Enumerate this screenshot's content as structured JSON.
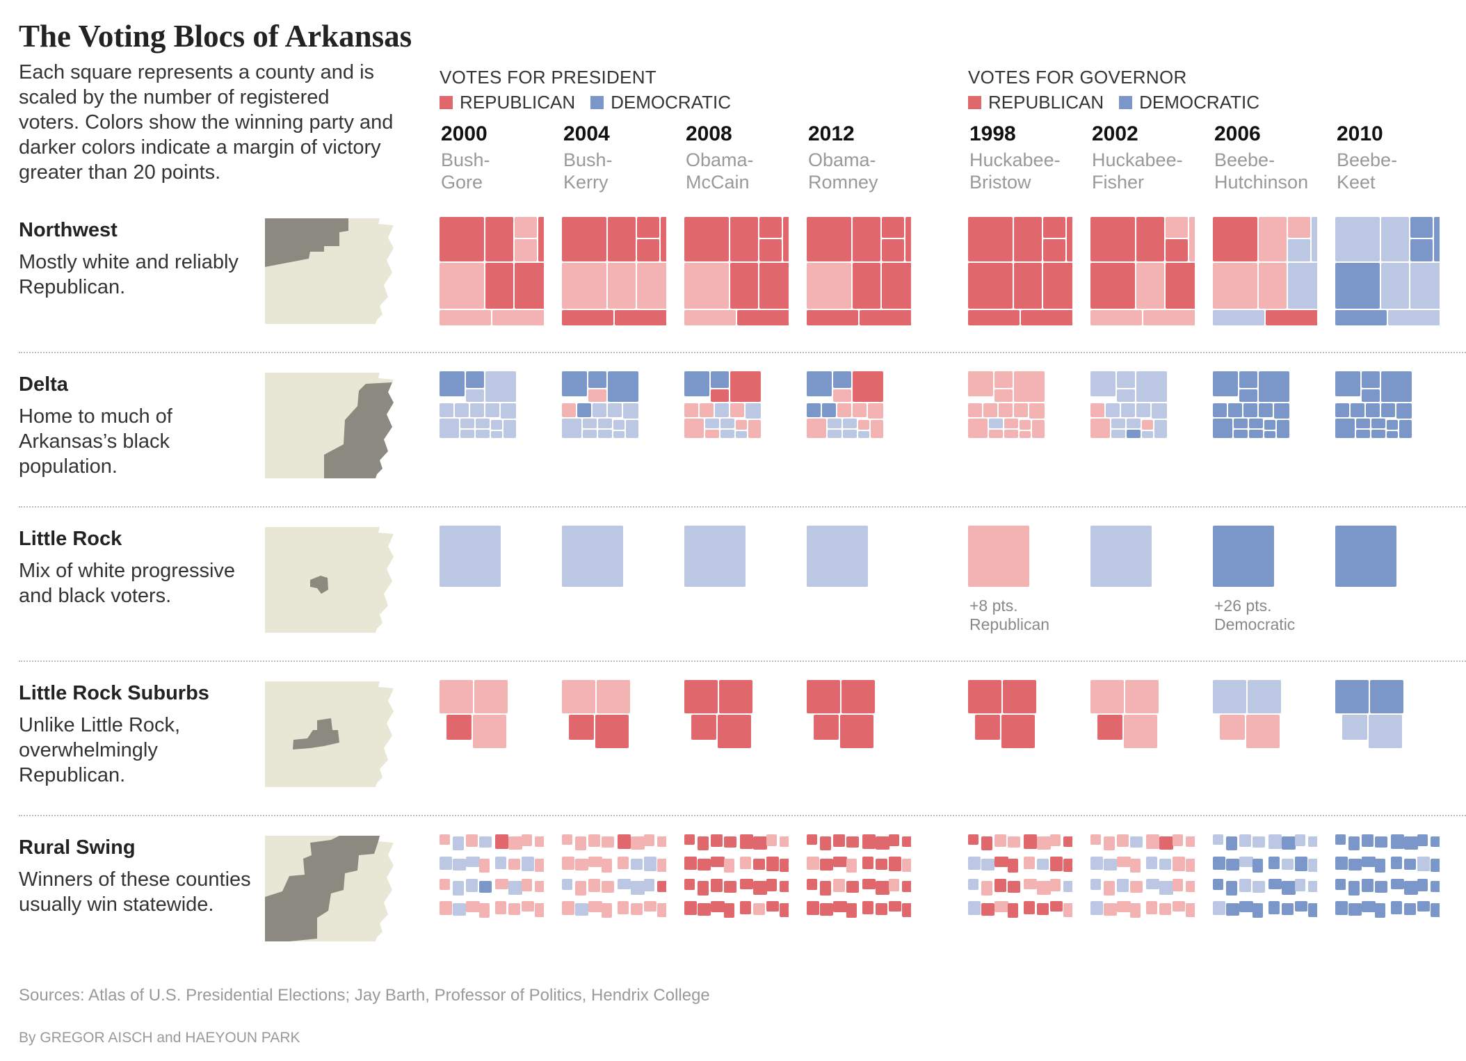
{
  "title": "The Voting Blocs of Arkansas",
  "intro": "Each square represents a county and is scaled by the number of registered voters. Colors show the winning party and darker colors indicate a margin of victory greater than 20 points.",
  "colors": {
    "rep_strong": "#e0676b",
    "rep_weak": "#f4b3b3",
    "dem_strong": "#7b97c9",
    "dem_weak": "#bcc7e3",
    "map_fill": "#e8e6d4",
    "map_region": "#8c8a80"
  },
  "president": {
    "title": "VOTES FOR PRESIDENT",
    "legend": [
      "REPUBLICAN",
      "DEMOCRATIC"
    ],
    "elections": [
      {
        "year": "2000",
        "candidates": [
          "Bush-",
          "Gore"
        ]
      },
      {
        "year": "2004",
        "candidates": [
          "Bush-",
          "Kerry"
        ]
      },
      {
        "year": "2008",
        "candidates": [
          "Obama-",
          "McCain"
        ]
      },
      {
        "year": "2012",
        "candidates": [
          "Obama-",
          "Romney"
        ]
      }
    ]
  },
  "governor": {
    "title": "VOTES FOR GOVERNOR",
    "legend": [
      "REPUBLICAN",
      "DEMOCRATIC"
    ],
    "elections": [
      {
        "year": "1998",
        "candidates": [
          "Huckabee-",
          "Bristow"
        ]
      },
      {
        "year": "2002",
        "candidates": [
          "Huckabee-",
          "Fisher"
        ]
      },
      {
        "year": "2006",
        "candidates": [
          "Beebe-",
          "Hutchinson"
        ]
      },
      {
        "year": "2010",
        "candidates": [
          "Beebe-",
          "Keet"
        ]
      }
    ]
  },
  "regions": [
    {
      "name": "Northwest",
      "description": "Mostly white and reliably Republican."
    },
    {
      "name": "Delta",
      "description": "Home to much of Arkansas’s black population."
    },
    {
      "name": "Little Rock",
      "description": "Mix of white progressive and black voters."
    },
    {
      "name": "Little Rock Suburbs",
      "description": "Unlike Little Rock, overwhelmingly Republican."
    },
    {
      "name": "Rural Swing",
      "description": "Winners of these counties usually win statewide."
    }
  ],
  "annotations": [
    {
      "line1": "+8 pts.",
      "line2": "Republican"
    },
    {
      "line1": "+26 pts.",
      "line2": "Democratic"
    }
  ],
  "source": "Sources: Atlas of U.S. Presidential Elections; Jay Barth, Professor of Politics, Hendrix College",
  "byline": "By GREGOR AISCH and HAEYOUN PARK",
  "chart_data": {
    "type": "heatmap",
    "value_legend": {
      "R": "Republican win, margin > 20 pts",
      "r": "Republican win, margin ≤ 20 pts",
      "D": "Democratic win, margin > 20 pts",
      "d": "Democratic win, margin ≤ 20 pts"
    },
    "columns": [
      "2000",
      "2004",
      "2008",
      "2012",
      "1998",
      "2002",
      "2006",
      "2010"
    ],
    "rows": [
      "Northwest",
      "Delta",
      "Little Rock",
      "Little Rock Suburbs",
      "Rural Swing"
    ],
    "cells": [
      [
        "RRrrRrRRrr",
        "RRRRRrrrRR",
        "RRRRRrRRrR",
        "RRRRRrRRRR",
        "RRRRRRRRRR",
        "RRrRrRrRrr",
        "RrrddrrddR",
        "ddDDDDddDd"
      ],
      [
        "DDddddddddddddddd",
        "DDDrrDddddddddddd",
        "DDRRrrdrdrddrrrdd",
        "DDRrDDrrrrddrrddd",
        "rrrrrrrrrrdrrrrrr",
        "ddddrddddrddrddDd",
        "DDDDDDDDDDDDDDDDD",
        "DDDDDDDDDDDDDDDDD"
      ],
      [
        "d",
        "d",
        "d",
        "d",
        "r",
        "d",
        "D",
        "D"
      ],
      [
        "rrRr",
        "rrRR",
        "RRRR",
        "RRRR",
        "RRRR",
        "rrRr",
        "ddrr",
        "DDdd"
      ],
      [
        "rdrdRrrrdddrdrdrrddDrdrrrdrrrrrr",
        "rrrrRrrrrrrrrddrdrrrdddRrdrrrrrr",
        "RRRRRRrrRRRrrRRRRRRRRRRRRRRRRrRR",
        "RRRRRRRRrRRrRRRrRRrRRRrRRRRRRRRR",
        "RRrrRrrRddRRrdRRdrRRrrrddRrRRRRr",
        "rrrdrRrrddrrddrrdrdrddrrdrrrrrrr",
        "dDdddDddDDdDDdDdDDddDDdddDDDDDDD",
        "DDDDDDDDDDDDDDdDDDDDDDDDDDDDDDDD"
      ]
    ]
  }
}
